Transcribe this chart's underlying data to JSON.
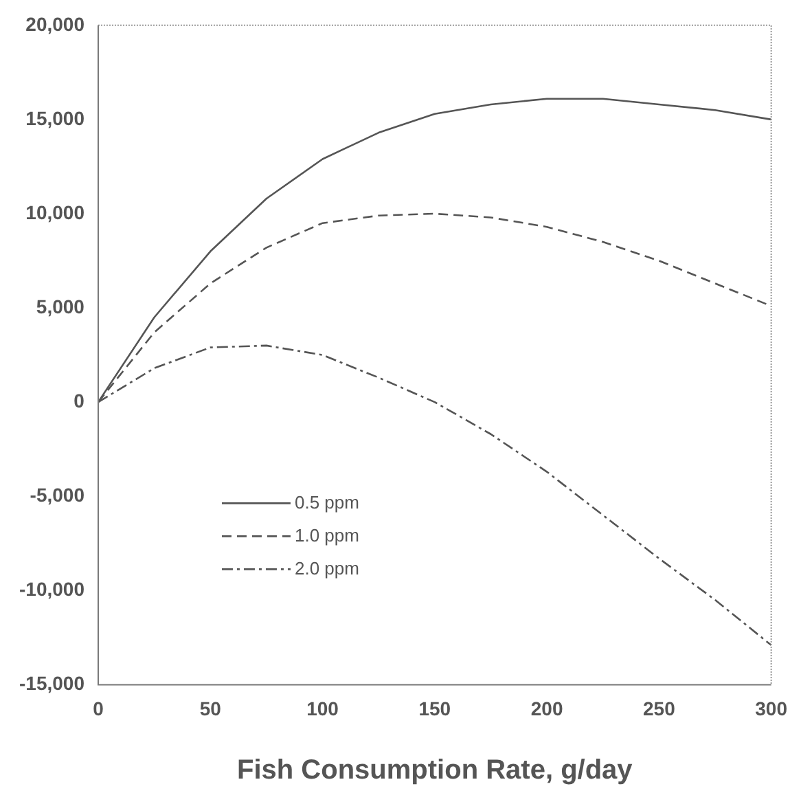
{
  "chart_data": {
    "type": "line",
    "xlabel": "Fish Consumption Rate, g/day",
    "x": [
      0,
      25,
      50,
      75,
      100,
      125,
      150,
      175,
      200,
      225,
      250,
      275,
      300
    ],
    "series": [
      {
        "name": "0.5 ppm",
        "color": "#555555",
        "line_style": "solid",
        "values": [
          0,
          4500,
          8000,
          10800,
          12900,
          14300,
          15300,
          15800,
          16100,
          16100,
          15800,
          15500,
          15000
        ]
      },
      {
        "name": "1.0 ppm",
        "color": "#555555",
        "line_style": "dashed",
        "values": [
          0,
          3700,
          6300,
          8200,
          9500,
          9900,
          10000,
          9800,
          9300,
          8500,
          7500,
          6300,
          5100
        ]
      },
      {
        "name": "2.0 ppm",
        "color": "#555555",
        "line_style": "dashdot",
        "values": [
          0,
          1800,
          2900,
          3000,
          2500,
          1300,
          0,
          -1700,
          -3700,
          -6000,
          -8300,
          -10500,
          -12900
        ]
      }
    ],
    "xlim": [
      0,
      300
    ],
    "xticks": [
      0,
      50,
      100,
      150,
      200,
      250,
      300
    ],
    "ylim": [
      -15000,
      20000
    ],
    "yticks": [
      {
        "value": -15000,
        "label": "-15,000"
      },
      {
        "value": -10000,
        "label": "-10,000"
      },
      {
        "value": -5000,
        "label": "-5,000"
      },
      0,
      {
        "value": 5000,
        "label": "5,000"
      },
      {
        "value": 10000,
        "label": "10,000"
      },
      {
        "value": 15000,
        "label": "15,000"
      },
      {
        "value": 20000,
        "label": "20,000"
      }
    ],
    "grid": false,
    "legend": "bottom left",
    "marker": "none"
  }
}
